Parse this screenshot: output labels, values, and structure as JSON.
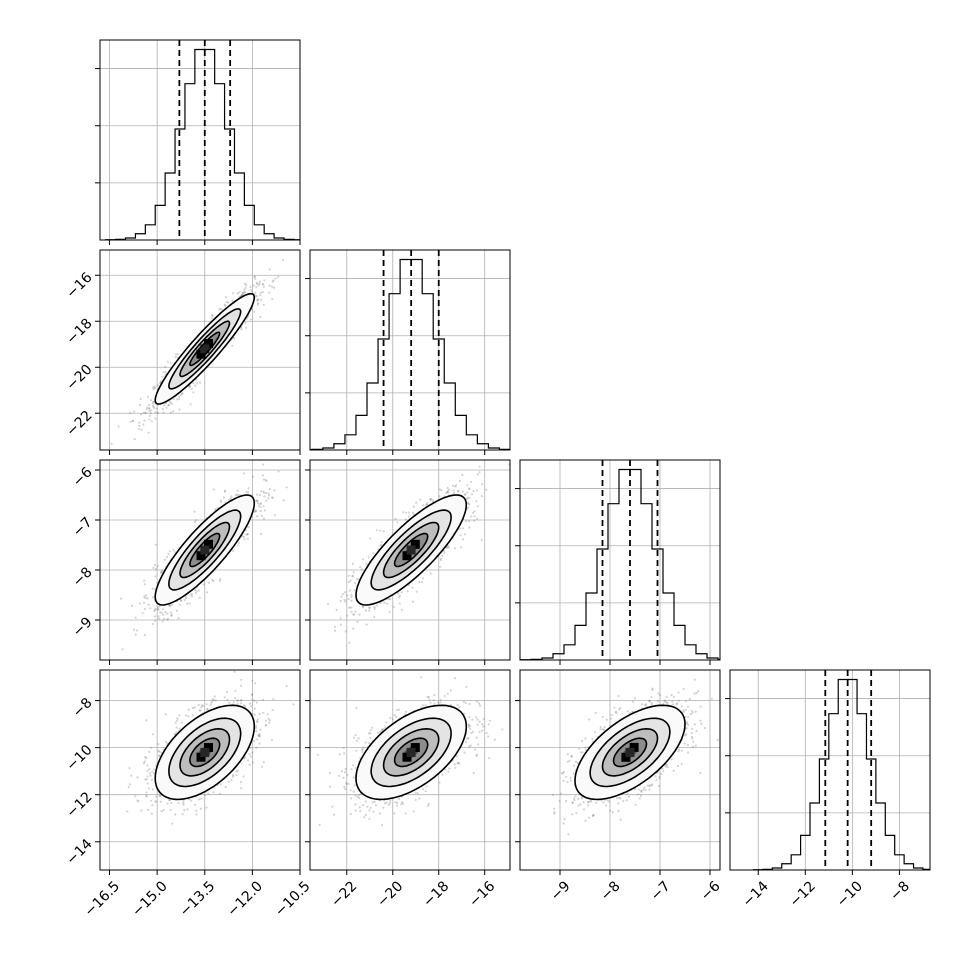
{
  "chart_data": {
    "type": "corner",
    "parameters": [
      {
        "range": [
          -16.8,
          -10.5
        ],
        "mean": -13.5,
        "sd": 0.78,
        "ticks": [
          -16.5,
          -15.0,
          -13.5,
          -12.0,
          -10.5
        ],
        "tick_labels": [
          "−16.5",
          "−15.0",
          "−13.5",
          "−12.0",
          "−10.5"
        ],
        "quantiles": [
          -14.3,
          -13.5,
          -12.7
        ]
      },
      {
        "range": [
          -23.6,
          -14.9
        ],
        "mean": -19.2,
        "sd": 1.2,
        "ticks": [
          -22,
          -20,
          -18,
          -16
        ],
        "tick_labels": [
          "−22",
          "−20",
          "−18",
          "−16"
        ],
        "quantiles": [
          -20.4,
          -19.2,
          -18.0
        ]
      },
      {
        "range": [
          -9.8,
          -5.8
        ],
        "mean": -7.6,
        "sd": 0.55,
        "ticks": [
          -9,
          -8,
          -7,
          -6
        ],
        "tick_labels": [
          "−9",
          "−8",
          "−7",
          "−6"
        ],
        "quantiles": [
          -8.15,
          -7.6,
          -7.05
        ]
      },
      {
        "range": [
          -15.2,
          -6.7
        ],
        "mean": -10.2,
        "sd": 1.0,
        "ticks": [
          -14,
          -12,
          -10,
          -8
        ],
        "tick_labels": [
          "−14",
          "−12",
          "−10",
          "−8"
        ],
        "quantiles": [
          -11.15,
          -10.2,
          -9.2
        ]
      }
    ],
    "histograms": [
      {
        "param": 0,
        "counts": [
          1,
          3,
          9,
          28,
          68,
          155,
          300,
          497,
          700,
          853,
          853,
          700,
          497,
          300,
          155,
          68,
          28,
          9,
          3,
          1
        ]
      },
      {
        "param": 1,
        "counts": [
          1,
          3,
          9,
          28,
          68,
          155,
          300,
          497,
          700,
          853,
          853,
          700,
          497,
          300,
          155,
          68,
          28,
          9,
          3,
          1
        ]
      },
      {
        "param": 2,
        "counts": [
          1,
          3,
          9,
          28,
          68,
          155,
          300,
          497,
          700,
          853,
          853,
          700,
          497,
          300,
          155,
          68,
          28,
          9,
          3,
          1
        ]
      },
      {
        "param": 3,
        "counts": [
          1,
          3,
          9,
          28,
          68,
          155,
          300,
          497,
          700,
          853,
          853,
          700,
          497,
          300,
          155,
          68,
          28,
          9,
          3,
          1
        ]
      }
    ],
    "correlations": {
      "1_0": 0.93,
      "2_0": 0.85,
      "2_1": 0.82,
      "3_0": 0.55,
      "3_1": 0.55,
      "3_2": 0.6
    },
    "grid": true,
    "hist_ticks_labeled": false
  }
}
